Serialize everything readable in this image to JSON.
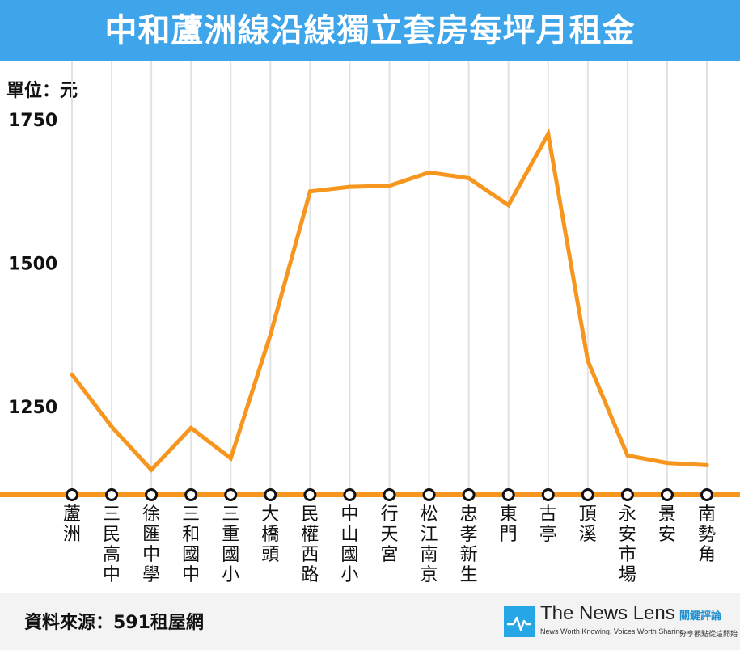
{
  "header": {
    "title": "中和蘆洲線沿線獨立套房每坪月租金"
  },
  "unit_label": "單位：元",
  "footer": {
    "source": "資料來源：591租屋網",
    "logo_name": "The News Lens",
    "logo_cn": "關鍵評論",
    "logo_tagline": "News Worth Knowing, Voices Worth Sharing",
    "logo_tagline_cn": "分享觀點從這開始"
  },
  "colors": {
    "title_bg": "#3ea5ea",
    "line": "#f6961e",
    "grid": "#e2e2e2",
    "footer_bg": "#f3f3f3"
  },
  "chart_data": {
    "type": "line",
    "categories": [
      "蘆洲",
      "三民高中",
      "徐匯中學",
      "三和國中",
      "三重國小",
      "大橋頭",
      "民權西路",
      "中山國小",
      "行天宮",
      "松江南京",
      "忠孝新生",
      "東門",
      "古亭",
      "頂溪",
      "永安市場",
      "景安",
      "南勢角"
    ],
    "values": [
      1306,
      1215,
      1140,
      1213,
      1160,
      1375,
      1625,
      1633,
      1635,
      1658,
      1648,
      1601,
      1725,
      1330,
      1165,
      1152,
      1148
    ],
    "yticks": [
      1250,
      1500,
      1750
    ],
    "ylim": [
      1100,
      1780
    ],
    "ylabel": "單位：元",
    "grid": "vertical",
    "legend": "none"
  }
}
